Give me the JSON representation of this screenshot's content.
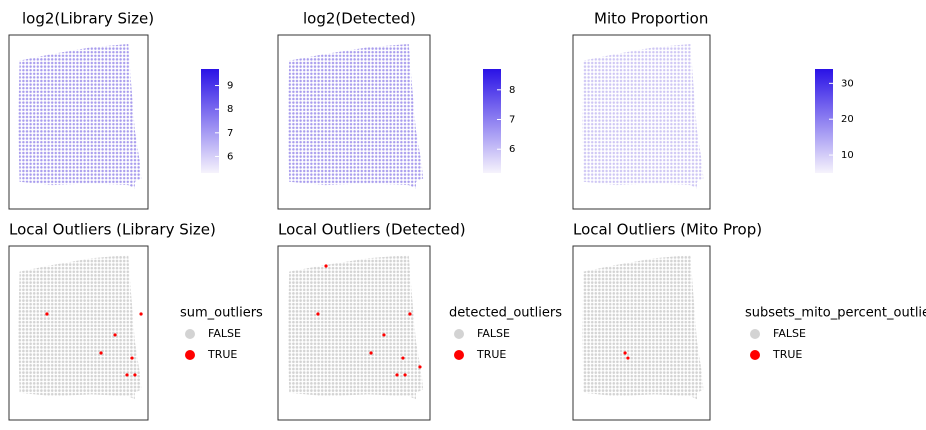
{
  "chart_data": [
    {
      "type": "spatial-heatmap",
      "title": "log2(Library Size)",
      "colorbar": {
        "lim": [
          5.3,
          9.7
        ],
        "ticks": [
          6,
          7,
          8,
          9
        ],
        "low": "#f6f3fc",
        "high": "#2a12e6"
      }
    },
    {
      "type": "spatial-heatmap",
      "title": "log2(Detected)",
      "colorbar": {
        "lim": [
          5.2,
          8.7
        ],
        "ticks": [
          6,
          7,
          8
        ],
        "low": "#f6f3fc",
        "high": "#2a12e6"
      }
    },
    {
      "type": "spatial-heatmap",
      "title": "Mito Proportion",
      "colorbar": {
        "lim": [
          5,
          34
        ],
        "ticks": [
          10,
          20,
          30
        ],
        "low": "#f6f3fc",
        "high": "#2a12e6"
      }
    },
    {
      "type": "spatial-outliers",
      "title": "Local Outliers (Library Size)",
      "legend_title": "sum_outliers",
      "categories": [
        "FALSE",
        "TRUE"
      ],
      "colors": [
        "#d3d3d3",
        "#ff0000"
      ],
      "xlim": [
        0,
        100
      ],
      "ylim": [
        0,
        100
      ],
      "outliers": {
        "x": [
          27.3,
          95.0,
          76.3,
          66.2,
          88.5,
          84.9,
          90.6
        ],
        "y": [
          60.9,
          60.9,
          48.9,
          38.5,
          35.6,
          25.9,
          25.9
        ]
      }
    },
    {
      "type": "spatial-outliers",
      "title": "Local Outliers (Detected)",
      "legend_title": "detected_outliers",
      "categories": [
        "FALSE",
        "TRUE"
      ],
      "colors": [
        "#d3d3d3",
        "#ff0000"
      ],
      "xlim": [
        0,
        100
      ],
      "ylim": [
        0,
        100
      ],
      "outliers": {
        "x": [
          31.6,
          26.3,
          86.8,
          69.7,
          61.2,
          82.2,
          93.4,
          78.3,
          83.6
        ],
        "y": [
          88.5,
          60.9,
          60.9,
          48.9,
          38.5,
          35.6,
          30.5,
          25.9,
          25.9
        ]
      }
    },
    {
      "type": "spatial-outliers",
      "title": "Local Outliers (Mito Prop)",
      "legend_title": "subsets_mito_percent_outliers",
      "categories": [
        "FALSE",
        "TRUE"
      ],
      "colors": [
        "#d3d3d3",
        "#ff0000"
      ],
      "xlim": [
        0,
        100
      ],
      "ylim": [
        0,
        100
      ],
      "outliers": {
        "x": [
          38.0,
          40.1
        ],
        "y": [
          38.5,
          35.6
        ]
      }
    }
  ]
}
